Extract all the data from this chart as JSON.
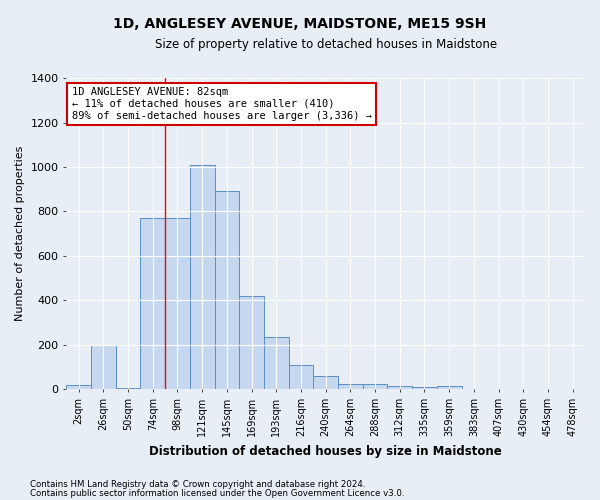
{
  "title": "1D, ANGLESEY AVENUE, MAIDSTONE, ME15 9SH",
  "subtitle": "Size of property relative to detached houses in Maidstone",
  "xlabel": "Distribution of detached houses by size in Maidstone",
  "ylabel": "Number of detached properties",
  "categories": [
    "2sqm",
    "26sqm",
    "50sqm",
    "74sqm",
    "98sqm",
    "121sqm",
    "145sqm",
    "169sqm",
    "193sqm",
    "216sqm",
    "240sqm",
    "264sqm",
    "288sqm",
    "312sqm",
    "335sqm",
    "359sqm",
    "383sqm",
    "407sqm",
    "430sqm",
    "454sqm",
    "478sqm"
  ],
  "values": [
    20,
    200,
    5,
    770,
    770,
    1010,
    890,
    420,
    235,
    110,
    60,
    25,
    25,
    15,
    10,
    15,
    0,
    0,
    0,
    0,
    0
  ],
  "bar_color": "#c5d8f0",
  "bar_edge_color": "#5b8ec4",
  "bg_color": "#e8eef6",
  "grid_color": "#ffffff",
  "annotation_line1": "1D ANGLESEY AVENUE: 82sqm",
  "annotation_line2": "← 11% of detached houses are smaller (410)",
  "annotation_line3": "89% of semi-detached houses are larger (3,336) →",
  "annotation_box_color": "#ffffff",
  "annotation_box_edge": "#cc0000",
  "ylim": [
    0,
    1400
  ],
  "yticks": [
    0,
    200,
    400,
    600,
    800,
    1000,
    1200,
    1400
  ],
  "red_line_x": 3.5,
  "footer1": "Contains HM Land Registry data © Crown copyright and database right 2024.",
  "footer2": "Contains public sector information licensed under the Open Government Licence v3.0."
}
